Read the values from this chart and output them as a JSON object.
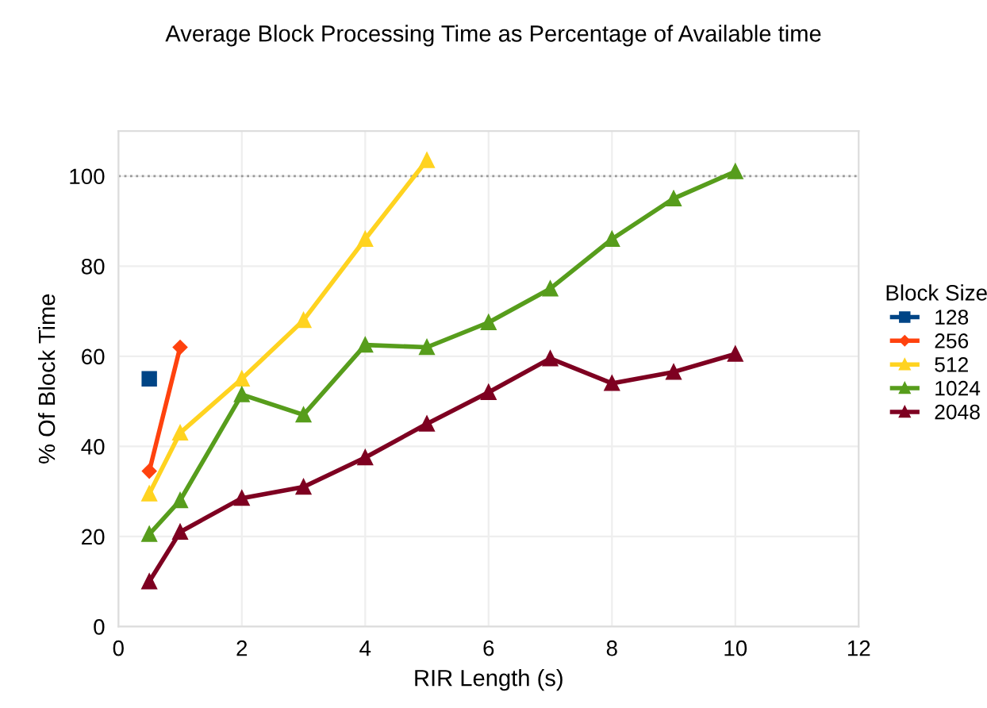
{
  "chart_data": {
    "type": "line",
    "title": "Average Block Processing Time as Percentage of Available time",
    "xlabel": "RIR Length (s)",
    "ylabel": "% Of Block Time",
    "legend_title": "Block Size",
    "legend": "right",
    "grid": true,
    "xlim": [
      0,
      12
    ],
    "xticks": [
      0,
      2,
      4,
      6,
      8,
      10,
      12
    ],
    "ylim": [
      0,
      110
    ],
    "yticks": [
      0,
      20,
      40,
      60,
      80,
      100
    ],
    "ref_lines": [
      {
        "axis": "y",
        "value": 100,
        "color": "#999999",
        "line_style": "dotted"
      }
    ],
    "series": [
      {
        "name": "128",
        "color": "#004586",
        "marker": "square",
        "x": [
          0.5
        ],
        "values": [
          55
        ]
      },
      {
        "name": "256",
        "color": "#ff420e",
        "marker": "diamond",
        "x": [
          0.5,
          1
        ],
        "values": [
          34.5,
          62
        ]
      },
      {
        "name": "512",
        "color": "#ffd320",
        "marker": "triangle",
        "x": [
          0.5,
          1,
          2,
          3,
          4,
          5
        ],
        "values": [
          29.5,
          43,
          55,
          68,
          86,
          103.5
        ]
      },
      {
        "name": "1024",
        "color": "#579d1c",
        "marker": "triangle",
        "x": [
          0.5,
          1,
          2,
          3,
          4,
          5,
          6,
          7,
          8,
          9,
          10
        ],
        "values": [
          20.5,
          28,
          51.5,
          47,
          62.5,
          62,
          67.5,
          75,
          86,
          95,
          101
        ]
      },
      {
        "name": "2048",
        "color": "#7e0021",
        "marker": "triangle",
        "x": [
          0.5,
          1,
          2,
          3,
          4,
          5,
          6,
          7,
          8,
          9,
          10
        ],
        "values": [
          10,
          21,
          28.5,
          31,
          37.5,
          45,
          52,
          59.5,
          54,
          56.5,
          60.5
        ]
      }
    ]
  }
}
